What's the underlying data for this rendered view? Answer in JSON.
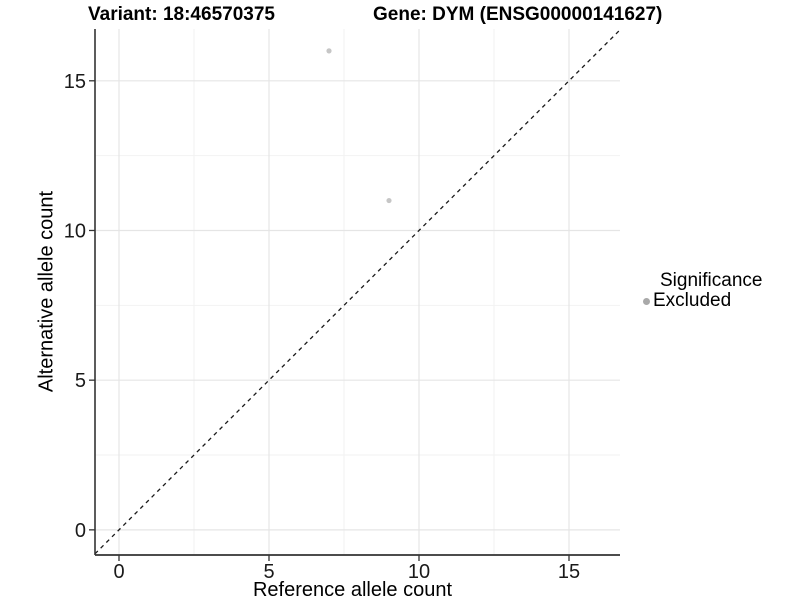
{
  "titles": {
    "variant": "Variant: 18:46570375",
    "gene": "Gene: DYM (ENSG00000141627)"
  },
  "chart_data": {
    "type": "scatter",
    "title_left": "Variant: 18:46570375",
    "title_right": "Gene: DYM (ENSG00000141627)",
    "xlabel": "Reference allele count",
    "ylabel": "Alternative allele count",
    "x_ticks": [
      0,
      5,
      10,
      15
    ],
    "y_ticks": [
      0,
      5,
      10,
      15
    ],
    "x_minor": [
      2.5,
      7.5,
      12.5
    ],
    "y_minor": [
      2.5,
      7.5,
      12.5
    ],
    "xlim": [
      -0.8,
      16.7
    ],
    "ylim": [
      -0.84,
      16.73
    ],
    "grid": "major-and-minor",
    "identity_line": {
      "slope": 1,
      "intercept": 0,
      "style": "dashed",
      "color": "#1a1a1a"
    },
    "series": [
      {
        "name": "Excluded",
        "color": "#c6c6c6",
        "points": [
          {
            "x": 7,
            "y": 16
          },
          {
            "x": 9,
            "y": 11
          }
        ]
      }
    ],
    "legend": {
      "title": "Significance",
      "position": "right",
      "entries": [
        {
          "label": "Excluded",
          "color": "#a9a9a9"
        }
      ]
    },
    "colors": {
      "background": "#ffffff",
      "grid_major": "#e5e5e5",
      "grid_minor": "#f2f2f2",
      "axis_line": "#333333",
      "tick_text": "#1a1a1a"
    }
  }
}
